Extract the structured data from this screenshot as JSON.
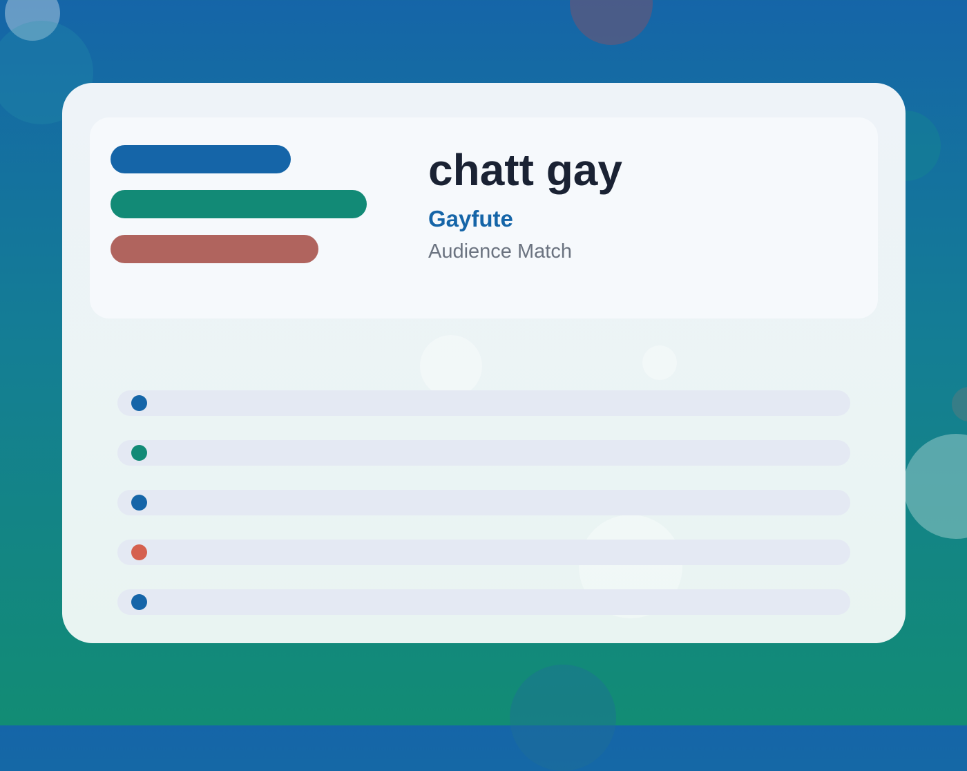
{
  "colors": {
    "blue": "#1565a8",
    "green": "#128a76",
    "red": "#b0645e",
    "dot_red": "#d5604f"
  },
  "hero": {
    "title": "chatt gay",
    "brand": "Gayfute",
    "subtitle": "Audience Match"
  },
  "legend_bars": [
    {
      "color": "#1565a8"
    },
    {
      "color": "#128a76"
    },
    {
      "color": "#b0645e"
    }
  ],
  "list_rows": [
    {
      "dot_color": "#1565a8"
    },
    {
      "dot_color": "#128a76"
    },
    {
      "dot_color": "#1565a8"
    },
    {
      "dot_color": "#d5604f"
    },
    {
      "dot_color": "#1565a8"
    }
  ]
}
